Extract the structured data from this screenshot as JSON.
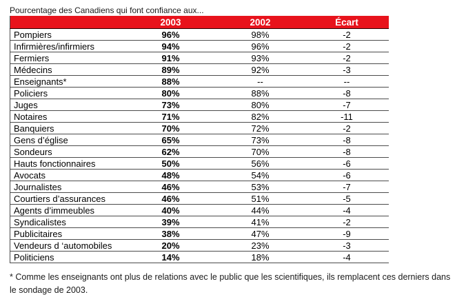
{
  "title": "Pourcentage des Canadiens qui font confiance aux...",
  "table": {
    "columns": [
      "",
      "2003",
      "2002",
      "Écart"
    ],
    "rows": [
      {
        "label": "Pompiers",
        "y2003": "96%",
        "y2002": "98%",
        "ecart": "-2"
      },
      {
        "label": "Infirmières/infirmiers",
        "y2003": "94%",
        "y2002": "96%",
        "ecart": "-2"
      },
      {
        "label": "Fermiers",
        "y2003": "91%",
        "y2002": "93%",
        "ecart": "-2"
      },
      {
        "label": "Médecins",
        "y2003": "89%",
        "y2002": "92%",
        "ecart": "-3"
      },
      {
        "label": "Enseignants*",
        "y2003": "88%",
        "y2002": "--",
        "ecart": "--"
      },
      {
        "label": "Policiers",
        "y2003": "80%",
        "y2002": "88%",
        "ecart": "-8"
      },
      {
        "label": "Juges",
        "y2003": "73%",
        "y2002": "80%",
        "ecart": "-7"
      },
      {
        "label": "Notaires",
        "y2003": "71%",
        "y2002": "82%",
        "ecart": "-11"
      },
      {
        "label": "Banquiers",
        "y2003": "70%",
        "y2002": "72%",
        "ecart": "-2"
      },
      {
        "label": "Gens d’église",
        "y2003": "65%",
        "y2002": "73%",
        "ecart": "-8"
      },
      {
        "label": "Sondeurs",
        "y2003": "62%",
        "y2002": "70%",
        "ecart": "-8"
      },
      {
        "label": "Hauts fonctionnaires",
        "y2003": "50%",
        "y2002": "56%",
        "ecart": "-6"
      },
      {
        "label": "Avocats",
        "y2003": "48%",
        "y2002": "54%",
        "ecart": "-6"
      },
      {
        "label": "Journalistes",
        "y2003": "46%",
        "y2002": "53%",
        "ecart": "-7"
      },
      {
        "label": "Courtiers d’assurances",
        "y2003": "46%",
        "y2002": "51%",
        "ecart": "-5"
      },
      {
        "label": "Agents d’immeubles",
        "y2003": "40%",
        "y2002": "44%",
        "ecart": "-4"
      },
      {
        "label": "Syndicalistes",
        "y2003": "39%",
        "y2002": "41%",
        "ecart": "-2"
      },
      {
        "label": "Publicitaires",
        "y2003": "38%",
        "y2002": "47%",
        "ecart": "-9"
      },
      {
        "label": "Vendeurs d ‘automobiles",
        "y2003": "20%",
        "y2002": "23%",
        "ecart": "-3"
      },
      {
        "label": "Politiciens",
        "y2003": "14%",
        "y2002": "18%",
        "ecart": "-4"
      }
    ]
  },
  "footnote": "* Comme les enseignants ont plus de relations avec le public que les scientifiques, ils remplacent ces derniers dans le sondage de 2003.",
  "colors": {
    "header_bg": "#e8131c",
    "header_text": "#ffffff",
    "row_border": "#4a4a4a",
    "text": "#000000"
  }
}
